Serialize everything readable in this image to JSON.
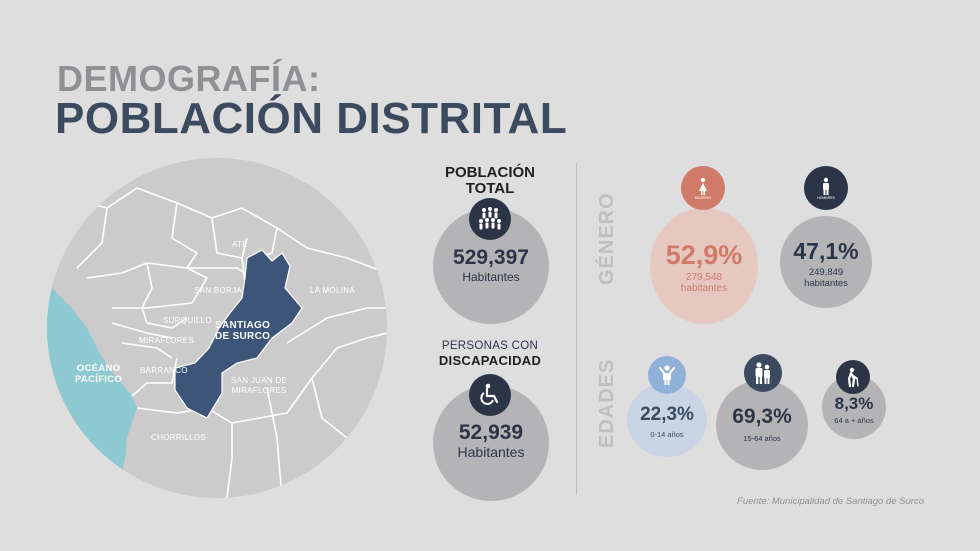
{
  "title": {
    "line1": "DEMOGRAFÍA:",
    "line2": "POBLACIÓN DISTRITAL"
  },
  "map": {
    "labels": {
      "ate": "ATE",
      "san_borja": "SAN BORJA",
      "la_molina": "LA MOLINA",
      "surquillo": "SURQUILLO",
      "miraflores": "MIRAFLORES",
      "santiago": "SANTIAGO\nDE SURCO",
      "barranco": "BARRANCO",
      "sjm": "SAN JUAN DE\nMIRAFLORES",
      "chorrillos": "CHORRILLOS",
      "ocean": "OCÉANO\nPACÍFICO"
    },
    "colors": {
      "land": "#c9c9c9",
      "ocean": "#8ec9d2",
      "highlight": "#3c5578"
    }
  },
  "total": {
    "heading": "POBLACIÓN\nTOTAL",
    "value": "529,397",
    "unit": "Habitantes"
  },
  "disability": {
    "heading_line1": "PERSONAS CON",
    "heading_line2": "DISCAPACIDAD",
    "value": "52,939",
    "unit": "Habitantes"
  },
  "gender": {
    "section_label": "GÉNERO",
    "female": {
      "icon_label": "MUJERES",
      "percent": "52,9%",
      "count": "279,548",
      "unit": "habitantes",
      "color": "#d07a6a"
    },
    "male": {
      "icon_label": "HOMBRES",
      "percent": "47,1%",
      "count": "249,849",
      "unit": "habitantes",
      "color": "#2c3548"
    }
  },
  "ages": {
    "section_label": "EDADES",
    "kids": {
      "percent": "22,3%",
      "range": "0-14 años",
      "color": "#8fb1d8"
    },
    "adults": {
      "percent": "69,3%",
      "range": "15-64 años",
      "color": "#3c4a60"
    },
    "seniors": {
      "percent": "8,3%",
      "range": "64 a + años",
      "color": "#2c3548"
    }
  },
  "source": "Fuente: Municipalidad de Santiago de Surco"
}
